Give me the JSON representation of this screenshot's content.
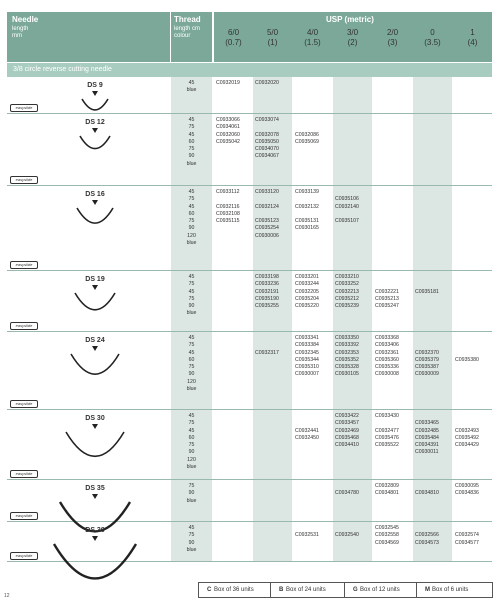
{
  "header": {
    "needle_title": "Needle",
    "needle_sub1": "length",
    "needle_sub2": "mm",
    "thread_title": "Thread",
    "thread_sub1": "length cm",
    "thread_sub2": "colour",
    "usp_title": "USP (metric)",
    "usp_columns": [
      {
        "usp": "6/0",
        "metric": "(0.7)"
      },
      {
        "usp": "5/0",
        "metric": "(1)"
      },
      {
        "usp": "4/0",
        "metric": "(1.5)"
      },
      {
        "usp": "3/0",
        "metric": "(2)"
      },
      {
        "usp": "2/0",
        "metric": "(3)"
      },
      {
        "usp": "0",
        "metric": "(3.5)"
      },
      {
        "usp": "1",
        "metric": "(4)"
      }
    ]
  },
  "section_title": "3/8 circle reverse cutting needle",
  "logo_text": "easyslide",
  "rows": [
    {
      "needle": "DS 9",
      "threads": [
        "45",
        "blue"
      ],
      "codes": [
        [
          "C0932019"
        ],
        [
          "C0932020"
        ],
        [],
        [],
        [],
        [],
        []
      ]
    },
    {
      "needle": "DS 12",
      "threads": [
        "45",
        "75",
        "45",
        "60",
        "75",
        "90",
        "blue"
      ],
      "codes": [
        [
          "C0933066",
          "C0934061",
          "C0932060",
          "C0935042"
        ],
        [
          "C0933074",
          "",
          "C0932078",
          "C0935050",
          "C0934070",
          "C0934067"
        ],
        [
          "",
          "",
          "C0932086",
          "C0935069"
        ],
        [],
        [],
        [],
        []
      ]
    },
    {
      "needle": "DS 16",
      "threads": [
        "45",
        "75",
        "45",
        "60",
        "75",
        "90",
        "120",
        "blue"
      ],
      "codes": [
        [
          "C0933112",
          "",
          "C0932116",
          "C0932108",
          "C0935115"
        ],
        [
          "C0933120",
          "",
          "C0932124",
          "",
          "C0935123",
          "C0935254",
          "C0930006"
        ],
        [
          "C0933139",
          "",
          "C0932132",
          "",
          "C0935131",
          "C0930165"
        ],
        [
          "",
          "C0935106",
          "C0932140",
          "",
          "C0935107"
        ],
        [],
        [],
        []
      ]
    },
    {
      "needle": "DS 19",
      "threads": [
        "45",
        "75",
        "45",
        "75",
        "90",
        "blue"
      ],
      "codes": [
        [],
        [
          "C0933198",
          "C0933236",
          "C0932191",
          "C0935190",
          "C0935255"
        ],
        [
          "C0933201",
          "C0933244",
          "C0932205",
          "C0935204",
          "C0935220"
        ],
        [
          "C0933210",
          "C0933252",
          "C0932213",
          "C0935212",
          "C0935239"
        ],
        [
          "",
          "",
          "C0932221",
          "C0935213",
          "C0935247"
        ],
        [
          "",
          "",
          "C0935181"
        ],
        []
      ]
    },
    {
      "needle": "DS 24",
      "threads": [
        "45",
        "75",
        "45",
        "60",
        "75",
        "90",
        "120",
        "blue"
      ],
      "codes": [
        [],
        [
          "",
          "",
          "C0932317"
        ],
        [
          "C0933341",
          "C0933384",
          "C0932345",
          "C0935344",
          "C0935310",
          "C0930007"
        ],
        [
          "C0933350",
          "C0933392",
          "C0932353",
          "C0935352",
          "C0935328",
          "C0930105"
        ],
        [
          "C0933368",
          "C0933406",
          "C0932361",
          "C0935360",
          "C0935336",
          "C0930008"
        ],
        [
          "",
          "",
          "C0932370",
          "C0935379",
          "C0935387",
          "C0930009"
        ],
        [
          "",
          "",
          "",
          "C0935380"
        ]
      ]
    },
    {
      "needle": "DS 30",
      "threads": [
        "45",
        "75",
        "45",
        "60",
        "75",
        "90",
        "120",
        "blue"
      ],
      "codes": [
        [],
        [],
        [
          "",
          "",
          "C0932441",
          "C0932450"
        ],
        [
          "C0933422",
          "C0933457",
          "C0932469",
          "C0935468",
          "C0934410"
        ],
        [
          "C0933430",
          "",
          "C0932477",
          "C0935476",
          "C0935522"
        ],
        [
          "",
          "C0933465",
          "C0932485",
          "C0935484",
          "C0934391",
          "C0930011"
        ],
        [
          "",
          "",
          "C0932493",
          "C0935492",
          "C0934429"
        ]
      ]
    },
    {
      "needle": "DS 35",
      "threads": [
        "75",
        "90",
        "blue"
      ],
      "codes": [
        [],
        [],
        [],
        [
          "",
          "C0934780"
        ],
        [
          "C0932809",
          "C0934801"
        ],
        [
          "",
          "C0934810"
        ],
        [
          "C0930095",
          "C0934836"
        ]
      ]
    },
    {
      "needle": "DS 39",
      "threads": [
        "45",
        "75",
        "90",
        "blue"
      ],
      "codes": [
        [],
        [],
        [
          "",
          "C0932531"
        ],
        [
          "",
          "C0932540"
        ],
        [
          "C0932545",
          "C0932558",
          "C0934569"
        ],
        [
          "",
          "C0932566",
          "C0934573"
        ],
        [
          "",
          "C0932574",
          "C0934577"
        ]
      ]
    }
  ],
  "legend": [
    {
      "code": "C",
      "text": "Box of 36 units"
    },
    {
      "code": "B",
      "text": "Box of 24 units"
    },
    {
      "code": "G",
      "text": "Box of 12 units"
    },
    {
      "code": "M",
      "text": "Box of 6 units"
    }
  ],
  "page_number": "12"
}
